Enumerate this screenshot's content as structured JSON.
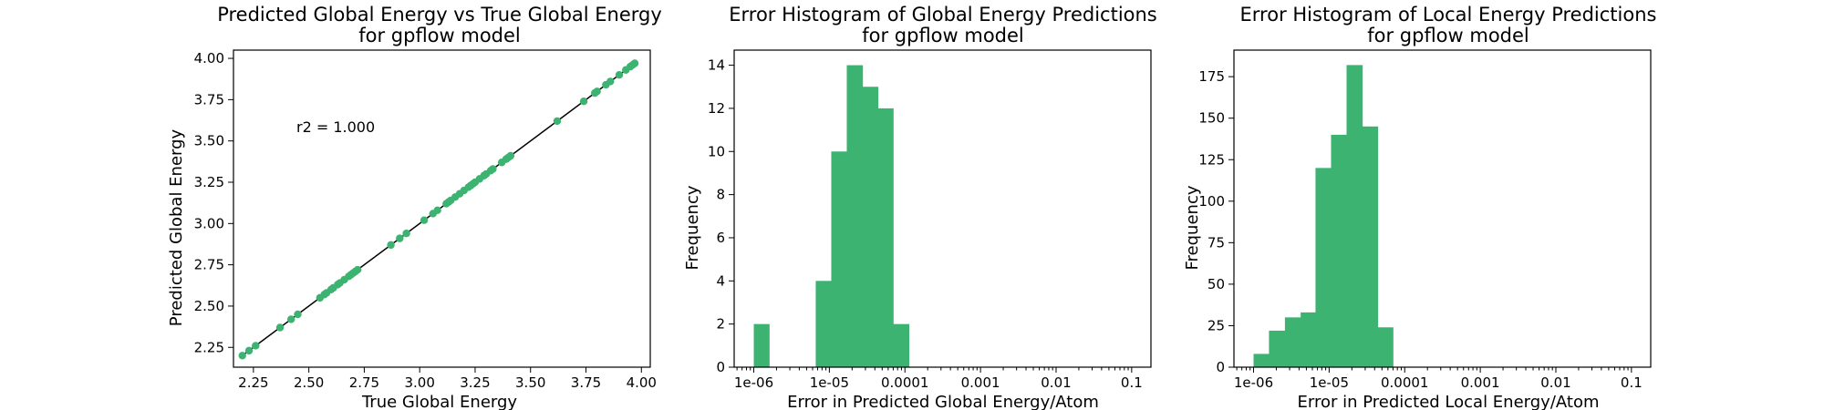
{
  "chart_data": [
    {
      "type": "scatter",
      "title": "Predicted Global Energy vs True Global Energy\nfor gpflow model",
      "xlabel": "True Global Energy",
      "ylabel": "Predicted Global Energy",
      "xlim": [
        2.16,
        4.04
      ],
      "ylim": [
        2.13,
        4.05
      ],
      "xticks": [
        2.25,
        2.5,
        2.75,
        3.0,
        3.25,
        3.5,
        3.75,
        4.0
      ],
      "xtick_labels": [
        "2.25",
        "2.50",
        "2.75",
        "3.00",
        "3.25",
        "3.50",
        "3.75",
        "4.00"
      ],
      "yticks": [
        2.25,
        2.5,
        2.75,
        3.0,
        3.25,
        3.5,
        3.75,
        4.0
      ],
      "ytick_labels": [
        "2.25",
        "2.50",
        "2.75",
        "3.00",
        "3.25",
        "3.50",
        "3.75",
        "4.00"
      ],
      "annotation": "r2 = 1.000",
      "grid": false,
      "point_color": "#3cb371",
      "line_color": "#000000",
      "reference_line": [
        [
          2.2,
          2.2
        ],
        [
          3.97,
          3.97
        ]
      ],
      "x": [
        2.2,
        2.23,
        2.26,
        2.37,
        2.42,
        2.45,
        2.55,
        2.57,
        2.58,
        2.6,
        2.61,
        2.63,
        2.64,
        2.66,
        2.68,
        2.69,
        2.7,
        2.71,
        2.72,
        2.87,
        2.91,
        2.94,
        3.02,
        3.06,
        3.08,
        3.12,
        3.13,
        3.14,
        3.16,
        3.18,
        3.2,
        3.22,
        3.23,
        3.24,
        3.25,
        3.27,
        3.29,
        3.3,
        3.32,
        3.33,
        3.37,
        3.39,
        3.4,
        3.41,
        3.62,
        3.74,
        3.79,
        3.8,
        3.84,
        3.86,
        3.9,
        3.93,
        3.95,
        3.96,
        3.97
      ],
      "y": [
        2.2,
        2.23,
        2.26,
        2.37,
        2.42,
        2.45,
        2.55,
        2.57,
        2.58,
        2.6,
        2.61,
        2.63,
        2.64,
        2.66,
        2.68,
        2.69,
        2.7,
        2.71,
        2.72,
        2.87,
        2.91,
        2.94,
        3.02,
        3.06,
        3.08,
        3.12,
        3.13,
        3.14,
        3.16,
        3.18,
        3.2,
        3.22,
        3.23,
        3.24,
        3.25,
        3.27,
        3.29,
        3.3,
        3.32,
        3.33,
        3.37,
        3.39,
        3.4,
        3.41,
        3.62,
        3.74,
        3.79,
        3.8,
        3.84,
        3.86,
        3.9,
        3.93,
        3.95,
        3.96,
        3.97
      ]
    },
    {
      "type": "bar",
      "subtype": "histogram",
      "title": "Error Histogram of Global Energy Predictions\nfor gpflow model",
      "xlabel": "Error in Predicted Global Energy/Atom",
      "ylabel": "Frequency",
      "xscale": "log",
      "xlim": [
        5.5e-07,
        0.18
      ],
      "ylim": [
        0,
        14.7
      ],
      "xticks": [
        1e-06,
        1e-05,
        0.0001,
        0.001,
        0.01,
        0.1
      ],
      "xtick_labels": [
        "1e-06",
        "1e-05",
        "0.0001",
        "0.001",
        "0.01",
        "0.1"
      ],
      "yticks": [
        0,
        2,
        4,
        6,
        8,
        10,
        12,
        14
      ],
      "ytick_labels": [
        "0",
        "2",
        "4",
        "6",
        "8",
        "10",
        "12",
        "14"
      ],
      "grid": false,
      "bar_color": "#3cb371",
      "bin_edges": [
        1e-06,
        1.6e-06,
        2.6e-06,
        4.2e-06,
        6.6e-06,
        1.06e-05,
        1.7e-05,
        2.75e-05,
        4.4e-05,
        7e-05,
        0.000113,
        0.00018
      ],
      "values": [
        2,
        0,
        0,
        0,
        4,
        10,
        14,
        13,
        12,
        2,
        0
      ]
    },
    {
      "type": "bar",
      "subtype": "histogram",
      "title": "Error Histogram of Local Energy Predictions\nfor gpflow model",
      "xlabel": "Error in Predicted Local Energy/Atom",
      "ylabel": "Frequency",
      "xscale": "log",
      "xlim": [
        5.5e-07,
        0.18
      ],
      "ylim": [
        0,
        191
      ],
      "xticks": [
        1e-06,
        1e-05,
        0.0001,
        0.001,
        0.01,
        0.1
      ],
      "xtick_labels": [
        "1e-06",
        "1e-05",
        "0.0001",
        "0.001",
        "0.01",
        "0.1"
      ],
      "yticks": [
        0,
        25,
        50,
        75,
        100,
        125,
        150,
        175
      ],
      "ytick_labels": [
        "0",
        "25",
        "50",
        "75",
        "100",
        "125",
        "150",
        "175"
      ],
      "grid": false,
      "bar_color": "#3cb371",
      "bin_edges": [
        1e-06,
        1.6e-06,
        2.6e-06,
        4.2e-06,
        6.6e-06,
        1.06e-05,
        1.7e-05,
        2.75e-05,
        4.4e-05,
        7e-05,
        0.000113,
        0.00018
      ],
      "values": [
        8,
        22,
        30,
        33,
        120,
        140,
        182,
        145,
        24,
        0,
        0
      ]
    }
  ]
}
